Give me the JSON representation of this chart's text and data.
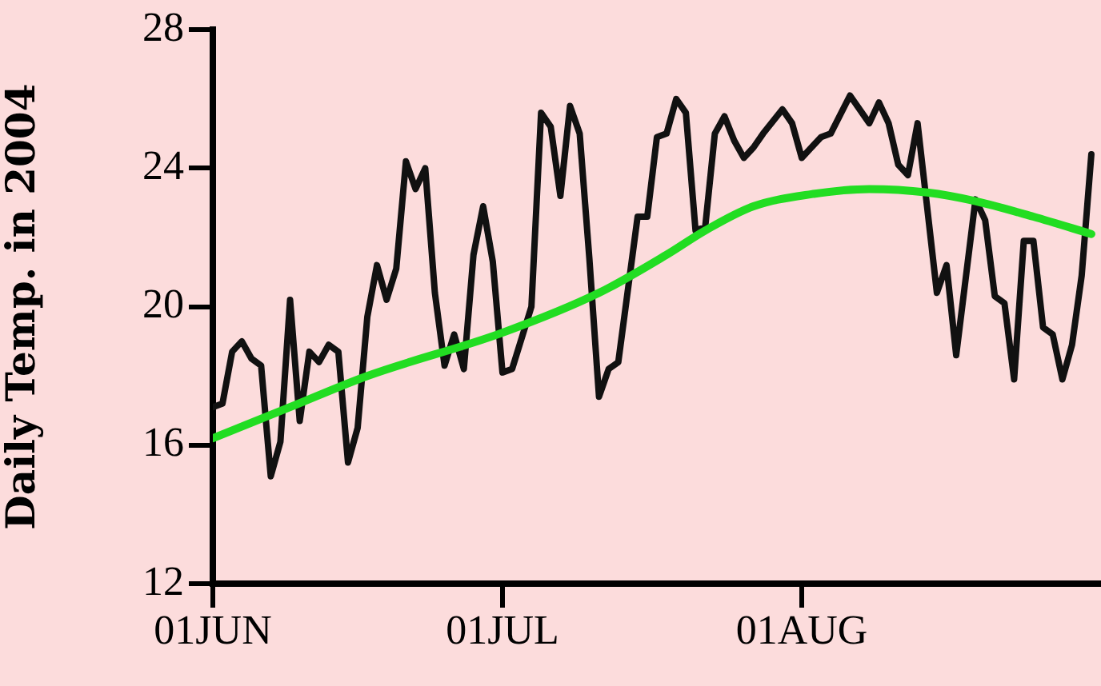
{
  "chart_data": {
    "type": "line",
    "ylabel": "Daily Temp. in 2004",
    "xlim": [
      "2004-06-01",
      "2004-09-01"
    ],
    "xticks": [
      {
        "value": "2004-06-01",
        "label": "01JUN"
      },
      {
        "value": "2004-07-01",
        "label": "01JUL"
      },
      {
        "value": "2004-08-01",
        "label": "01AUG"
      }
    ],
    "ylim": [
      12,
      28
    ],
    "yticks": [
      12,
      16,
      20,
      24,
      28
    ],
    "series": [
      {
        "color": "#111111",
        "x": [
          "2004-06-01",
          "2004-06-02",
          "2004-06-03",
          "2004-06-04",
          "2004-06-05",
          "2004-06-06",
          "2004-06-07",
          "2004-06-08",
          "2004-06-09",
          "2004-06-10",
          "2004-06-11",
          "2004-06-12",
          "2004-06-13",
          "2004-06-14",
          "2004-06-15",
          "2004-06-16",
          "2004-06-17",
          "2004-06-18",
          "2004-06-19",
          "2004-06-20",
          "2004-06-21",
          "2004-06-22",
          "2004-06-23",
          "2004-06-24",
          "2004-06-25",
          "2004-06-26",
          "2004-06-27",
          "2004-06-28",
          "2004-06-29",
          "2004-06-30",
          "2004-07-01",
          "2004-07-02",
          "2004-07-04",
          "2004-07-05",
          "2004-07-06",
          "2004-07-07",
          "2004-07-08",
          "2004-07-09",
          "2004-07-10",
          "2004-07-11",
          "2004-07-12",
          "2004-07-13",
          "2004-07-15",
          "2004-07-16",
          "2004-07-17",
          "2004-07-18",
          "2004-07-19",
          "2004-07-20",
          "2004-07-21",
          "2004-07-22",
          "2004-07-23",
          "2004-07-24",
          "2004-07-25",
          "2004-07-26",
          "2004-07-27",
          "2004-07-28",
          "2004-07-30",
          "2004-07-31",
          "2004-08-01",
          "2004-08-03",
          "2004-08-04",
          "2004-08-06",
          "2004-08-08",
          "2004-08-09",
          "2004-08-10",
          "2004-08-11",
          "2004-08-12",
          "2004-08-13",
          "2004-08-15",
          "2004-08-16",
          "2004-08-17",
          "2004-08-19",
          "2004-08-20",
          "2004-08-21",
          "2004-08-22",
          "2004-08-23",
          "2004-08-24",
          "2004-08-25",
          "2004-08-26",
          "2004-08-27",
          "2004-08-28",
          "2004-08-29",
          "2004-08-30",
          "2004-08-31"
        ],
        "values": [
          17.1,
          17.2,
          18.7,
          19.0,
          18.5,
          18.3,
          15.1,
          16.1,
          20.2,
          16.7,
          18.7,
          18.4,
          18.9,
          18.7,
          15.5,
          16.5,
          19.7,
          21.2,
          20.2,
          21.1,
          24.2,
          23.4,
          24.0,
          20.4,
          18.3,
          19.2,
          18.2,
          21.5,
          22.9,
          21.3,
          18.1,
          18.2,
          20.0,
          25.6,
          25.2,
          23.2,
          25.8,
          25.0,
          21.4,
          17.4,
          18.2,
          18.4,
          22.6,
          22.6,
          24.9,
          25.0,
          26.0,
          25.6,
          22.2,
          22.3,
          25.0,
          25.5,
          24.8,
          24.3,
          24.6,
          25.0,
          25.7,
          25.3,
          24.3,
          24.9,
          25.0,
          26.1,
          25.3,
          25.9,
          25.3,
          24.1,
          23.8,
          25.3,
          20.4,
          21.2,
          18.6,
          23.1,
          22.5,
          20.3,
          20.1,
          17.9,
          21.9,
          21.9,
          19.4,
          19.2,
          17.9,
          18.9,
          20.9,
          24.4
        ]
      },
      {
        "color": "#22dd22",
        "x": [
          "2004-06-01",
          "2004-06-09",
          "2004-06-17",
          "2004-07-01",
          "2004-07-11",
          "2004-07-18",
          "2004-07-22",
          "2004-07-27",
          "2004-08-02",
          "2004-08-08",
          "2004-08-14",
          "2004-08-19",
          "2004-08-25",
          "2004-08-31"
        ],
        "values": [
          16.2,
          17.1,
          18.0,
          19.25,
          20.4,
          21.5,
          22.2,
          22.9,
          23.25,
          23.4,
          23.3,
          23.05,
          22.6,
          22.1
        ]
      }
    ]
  }
}
